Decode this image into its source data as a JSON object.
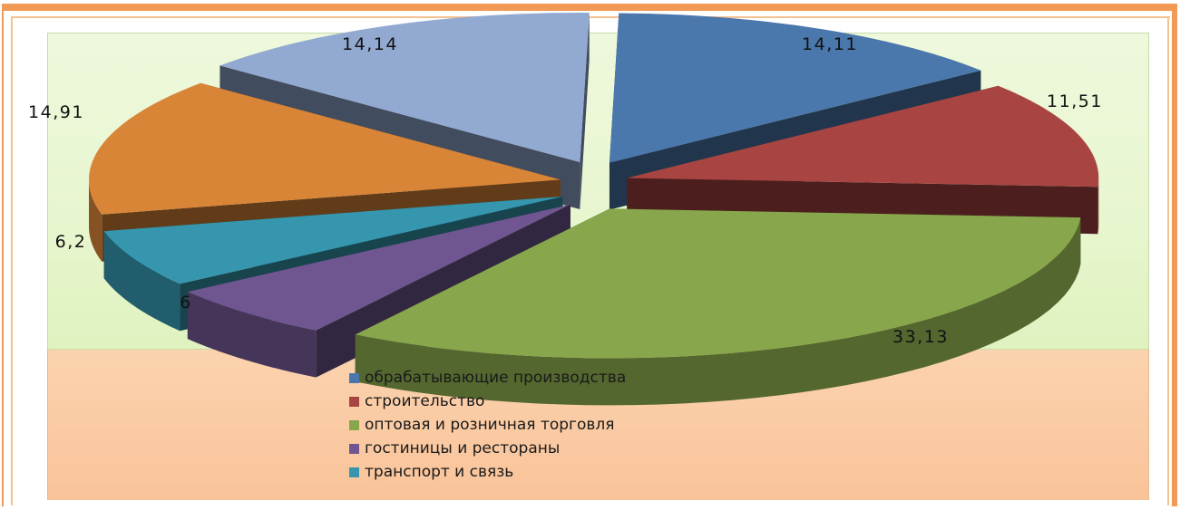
{
  "chart_data": {
    "type": "pie",
    "title": "",
    "slices": [
      {
        "label": "обрабатывающие производства",
        "value": 14.11,
        "display": "14,11",
        "color": "#4a77ac"
      },
      {
        "label": "строительство",
        "value": 11.51,
        "display": "11,51",
        "color": "#a84542"
      },
      {
        "label": "оптовая и розничная торговля",
        "value": 33.13,
        "display": "33,13",
        "color": "#88a64b"
      },
      {
        "label": "гостиницы и рестораны",
        "value": 6,
        "display": "6",
        "color": "#6f5690"
      },
      {
        "label": "транспорт и связь",
        "value": 6.2,
        "display": "6,2",
        "color": "#3596ae"
      },
      {
        "label": "",
        "value": 14.91,
        "display": "14,91",
        "color": "#d98538"
      },
      {
        "label": "",
        "value": 14.14,
        "display": "14,14",
        "color": "#92a9d2"
      }
    ],
    "legend": {
      "placement": "bottom",
      "items": [
        {
          "label": "обрабатывающие производства",
          "color": "#4a77ac"
        },
        {
          "label": "строительство",
          "color": "#a84542"
        },
        {
          "label": "оптовая и розничная торговля",
          "color": "#88a64b"
        },
        {
          "label": "гостиницы и рестораны",
          "color": "#6f5690"
        },
        {
          "label": "транспорт и связь",
          "color": "#3596ae"
        }
      ]
    },
    "exploded": true,
    "three_d": true
  }
}
